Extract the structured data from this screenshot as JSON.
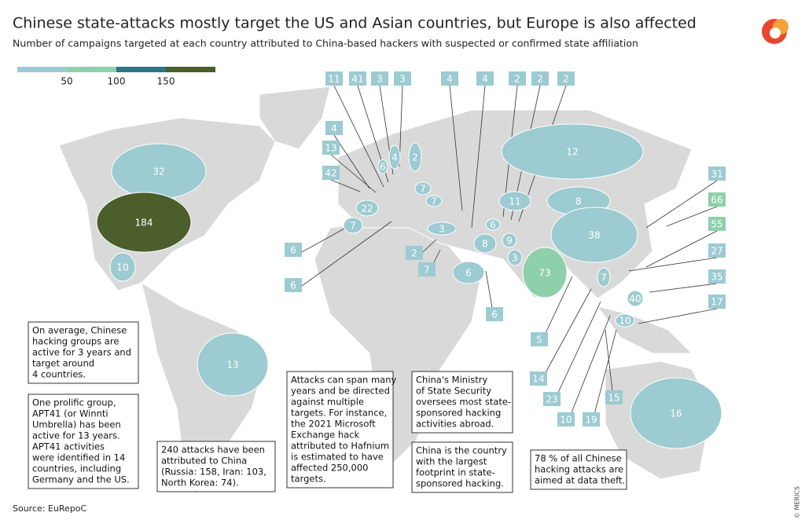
{
  "title": "Chinese state-attacks mostly target the US and Asian countries, but Europe is also affected",
  "subtitle": "Number of campaigns targeted at each country attributed to China-based hackers with suspected or confirmed state affiliation",
  "legend": {
    "ticks": [
      50,
      100,
      150
    ],
    "colors": [
      "#9ccbd1",
      "#8fd0ac",
      "#2e7587",
      "#4b5e2b"
    ]
  },
  "labels": [
    11,
    41,
    3,
    3,
    4,
    4,
    2,
    2,
    2,
    4,
    13,
    42,
    6,
    6,
    2,
    7,
    6,
    31,
    66,
    55,
    27,
    35,
    17,
    5,
    14,
    23,
    10,
    19,
    15,
    32,
    184,
    10,
    13,
    12,
    8,
    38,
    73,
    6,
    8,
    3,
    9,
    6,
    11,
    7,
    7,
    3,
    22,
    7,
    2,
    4,
    6,
    7,
    40,
    10,
    16
  ],
  "notes": [
    [
      "On average, Chinese",
      "hacking groups are",
      "active for 3 years and",
      "target around",
      "4 countries."
    ],
    [
      "One prolific group,",
      "APT41 (or Winnti",
      "Umbrella) has been",
      "active for 13 years.",
      "APT41 activities",
      "were identified in 14",
      "countries, including",
      "Germany and the US."
    ],
    [
      "240 attacks have been",
      "attributed to China",
      "(Russia: 158, Iran: 103,",
      "North Korea: 74)."
    ],
    [
      "Attacks can span many",
      "years and be directed",
      "against multiple",
      "targets. For instance,",
      "the 2021 Microsoft",
      "Exchange hack",
      "attributed to Hafnium",
      "is estimated to have",
      "affected 250,000",
      "targets."
    ],
    [
      "China's Ministry",
      "of State Security",
      "oversees most state-",
      "sponsored hacking",
      "activities abroad."
    ],
    [
      "China is the country",
      "with the largest",
      "footprint in state-",
      "sponsored hacking."
    ],
    [
      "78 % of all Chinese",
      "hacking attacks are",
      "aimed at data theft."
    ]
  ],
  "source": "Source: EuRepoC",
  "credit": "© MERICS"
}
